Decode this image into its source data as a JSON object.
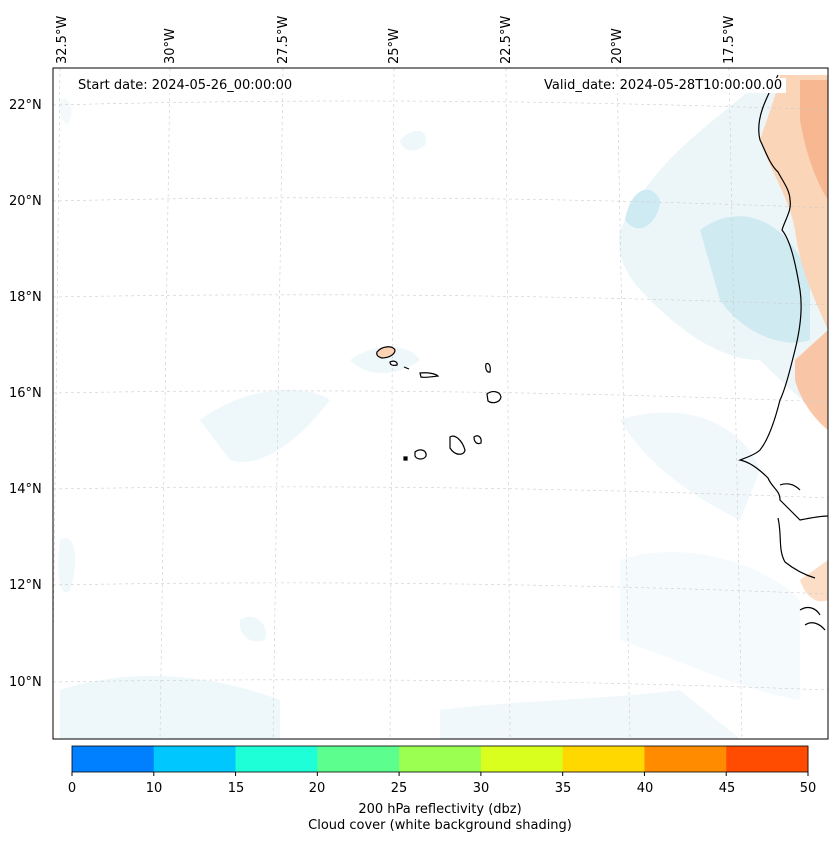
{
  "map": {
    "start_date": "Start date: 2024-05-26_00:00:00",
    "valid_date": "Valid_date: 2024-05-28T10:00:00.00",
    "longitude_labels": [
      "32.5°W",
      "30°W",
      "27.5°W",
      "25°W",
      "22.5°W",
      "20°W",
      "17.5°W"
    ],
    "latitude_labels": [
      "22°N",
      "20°N",
      "18°N",
      "16°N",
      "14°N",
      "12°N",
      "10°N"
    ],
    "region": "Cape Verde / West African coast"
  },
  "colorbar": {
    "ticks": [
      "0",
      "10",
      "15",
      "20",
      "25",
      "30",
      "35",
      "40",
      "45",
      "50"
    ],
    "colors": [
      "#0080ff",
      "#00c8ff",
      "#1effd8",
      "#5cff8e",
      "#9aff50",
      "#d8ff1e",
      "#ffd800",
      "#ff8c00",
      "#ff4c00"
    ],
    "label_line1": "200 hPa reflectivity (dbz)",
    "label_line2": "Cloud cover (white background shading)"
  }
}
